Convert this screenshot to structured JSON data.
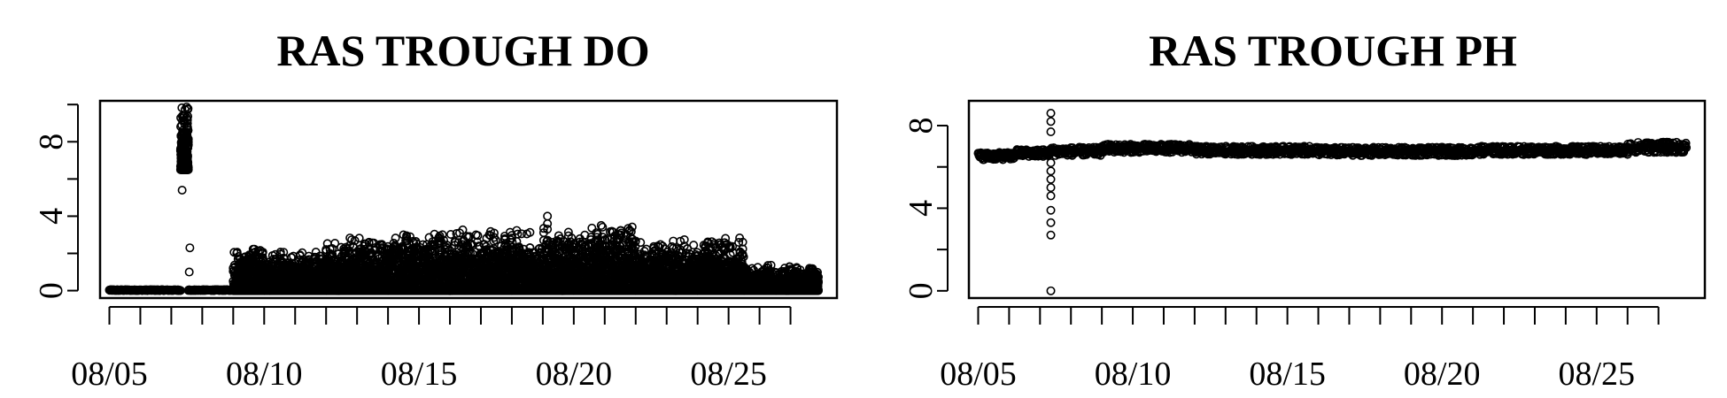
{
  "chart_data": [
    {
      "type": "scatter",
      "title": "RAS TROUGH DO",
      "xlabel": "",
      "ylabel": "",
      "x_tick_labels": [
        "08/05",
        "08/10",
        "08/15",
        "08/20",
        "08/25"
      ],
      "x_tick_positions": [
        5,
        10,
        15,
        20,
        25
      ],
      "x_minor_ticks": [
        5,
        6,
        7,
        8,
        9,
        10,
        11,
        12,
        13,
        14,
        15,
        16,
        17,
        18,
        19,
        20,
        21,
        22,
        23,
        24,
        25,
        26,
        27
      ],
      "xlim": [
        4.7,
        28.5
      ],
      "y_tick_labels": [
        "0",
        "4",
        "8"
      ],
      "y_ticks": [
        0,
        2,
        4,
        6,
        8,
        10
      ],
      "ylim": [
        -0.4,
        10.2
      ],
      "segments": [
        {
          "x": [
            5.0,
            7.3
          ],
          "low": 0.0,
          "high": 0.05
        },
        {
          "x": [
            7.3,
            7.55
          ],
          "low": 6.5,
          "high": 9.9
        },
        {
          "x": [
            7.55,
            9.0
          ],
          "low": 0.0,
          "high": 0.05
        },
        {
          "x": [
            9.0,
            10.0
          ],
          "low": 0.0,
          "high": 2.5
        },
        {
          "x": [
            10.0,
            12.0
          ],
          "low": 0.0,
          "high": 2.2
        },
        {
          "x": [
            12.0,
            14.0
          ],
          "low": 0.0,
          "high": 3.0
        },
        {
          "x": [
            14.0,
            16.0
          ],
          "low": 0.0,
          "high": 3.2
        },
        {
          "x": [
            16.0,
            18.0
          ],
          "low": 0.0,
          "high": 3.4
        },
        {
          "x": [
            18.0,
            20.0
          ],
          "low": 0.0,
          "high": 3.4
        },
        {
          "x": [
            20.0,
            22.0
          ],
          "low": 0.0,
          "high": 3.7
        },
        {
          "x": [
            22.0,
            24.0
          ],
          "low": 0.0,
          "high": 2.8
        },
        {
          "x": [
            24.0,
            25.5
          ],
          "low": 0.0,
          "high": 3.0
        },
        {
          "x": [
            25.5,
            27.9
          ],
          "low": 0.0,
          "high": 1.4
        }
      ],
      "outliers": [
        {
          "x": 7.35,
          "y": 5.4
        },
        {
          "x": 7.45,
          "y": 7.2
        },
        {
          "x": 7.55,
          "y": 6.6
        },
        {
          "x": 7.6,
          "y": 2.3
        },
        {
          "x": 7.58,
          "y": 1.0
        },
        {
          "x": 19.15,
          "y": 4.0
        },
        {
          "x": 19.15,
          "y": 3.6
        },
        {
          "x": 19.15,
          "y": 3.3
        }
      ]
    },
    {
      "type": "scatter",
      "title": "RAS TROUGH PH",
      "xlabel": "",
      "ylabel": "",
      "x_tick_labels": [
        "08/05",
        "08/10",
        "08/15",
        "08/20",
        "08/25"
      ],
      "x_tick_positions": [
        5,
        10,
        15,
        20,
        25
      ],
      "x_minor_ticks": [
        5,
        6,
        7,
        8,
        9,
        10,
        11,
        12,
        13,
        14,
        15,
        16,
        17,
        18,
        19,
        20,
        21,
        22,
        23,
        24,
        25,
        26,
        27
      ],
      "xlim": [
        4.7,
        28.5
      ],
      "y_tick_labels": [
        "0",
        "4",
        "8"
      ],
      "y_ticks": [
        0,
        2,
        4,
        6,
        8
      ],
      "ylim": [
        -0.35,
        9.2
      ],
      "segments": [
        {
          "x": [
            5.0,
            6.2
          ],
          "low": 6.35,
          "high": 6.7
        },
        {
          "x": [
            6.2,
            7.3
          ],
          "low": 6.5,
          "high": 6.85
        },
        {
          "x": [
            7.3,
            9.0
          ],
          "low": 6.55,
          "high": 6.95
        },
        {
          "x": [
            9.0,
            12.0
          ],
          "low": 6.7,
          "high": 7.1
        },
        {
          "x": [
            12.0,
            16.0
          ],
          "low": 6.6,
          "high": 7.0
        },
        {
          "x": [
            16.0,
            21.0
          ],
          "low": 6.55,
          "high": 6.95
        },
        {
          "x": [
            21.0,
            26.0
          ],
          "low": 6.6,
          "high": 7.0
        },
        {
          "x": [
            26.0,
            27.9
          ],
          "low": 6.7,
          "high": 7.2
        }
      ],
      "outliers": [
        {
          "x": 7.35,
          "y": 8.6
        },
        {
          "x": 7.35,
          "y": 8.2
        },
        {
          "x": 7.35,
          "y": 7.7
        },
        {
          "x": 7.35,
          "y": 6.2
        },
        {
          "x": 7.35,
          "y": 5.8
        },
        {
          "x": 7.35,
          "y": 5.4
        },
        {
          "x": 7.35,
          "y": 5.0
        },
        {
          "x": 7.35,
          "y": 4.6
        },
        {
          "x": 7.35,
          "y": 3.9
        },
        {
          "x": 7.35,
          "y": 3.3
        },
        {
          "x": 7.35,
          "y": 2.7
        },
        {
          "x": 7.35,
          "y": 0.0
        }
      ]
    }
  ]
}
